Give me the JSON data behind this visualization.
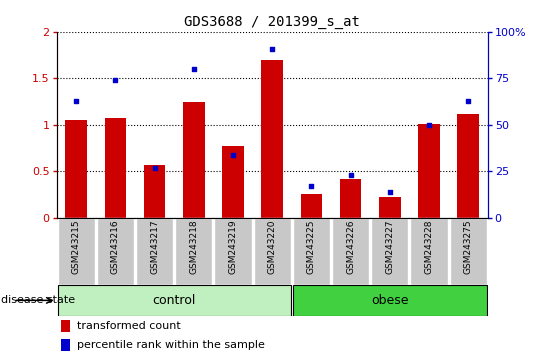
{
  "title": "GDS3688 / 201399_s_at",
  "samples": [
    "GSM243215",
    "GSM243216",
    "GSM243217",
    "GSM243218",
    "GSM243219",
    "GSM243220",
    "GSM243225",
    "GSM243226",
    "GSM243227",
    "GSM243228",
    "GSM243275"
  ],
  "red_values": [
    1.05,
    1.07,
    0.57,
    1.25,
    0.77,
    1.7,
    0.26,
    0.42,
    0.22,
    1.01,
    1.12
  ],
  "blue_values_pct": [
    63,
    74,
    27,
    80,
    34,
    91,
    17,
    23,
    14,
    50,
    63
  ],
  "groups": [
    {
      "label": "control",
      "start": 0,
      "end": 5,
      "color": "#c0f0c0",
      "dark_color": "#40c040"
    },
    {
      "label": "obese",
      "start": 6,
      "end": 10,
      "color": "#40d040",
      "dark_color": "#208820"
    }
  ],
  "ylim_left": [
    0,
    2
  ],
  "ylim_right": [
    0,
    100
  ],
  "yticks_left": [
    0,
    0.5,
    1.0,
    1.5,
    2.0
  ],
  "ytick_labels_left": [
    "0",
    "0.5",
    "1",
    "1.5",
    "2"
  ],
  "yticks_right": [
    0,
    25,
    50,
    75,
    100
  ],
  "ytick_labels_right": [
    "0",
    "25",
    "50",
    "75",
    "100%"
  ],
  "left_axis_color": "#cc0000",
  "right_axis_color": "#0000cc",
  "bar_color": "#cc0000",
  "dot_color": "#0000cc",
  "legend_red": "transformed count",
  "legend_blue": "percentile rank within the sample",
  "disease_state_label": "disease state"
}
